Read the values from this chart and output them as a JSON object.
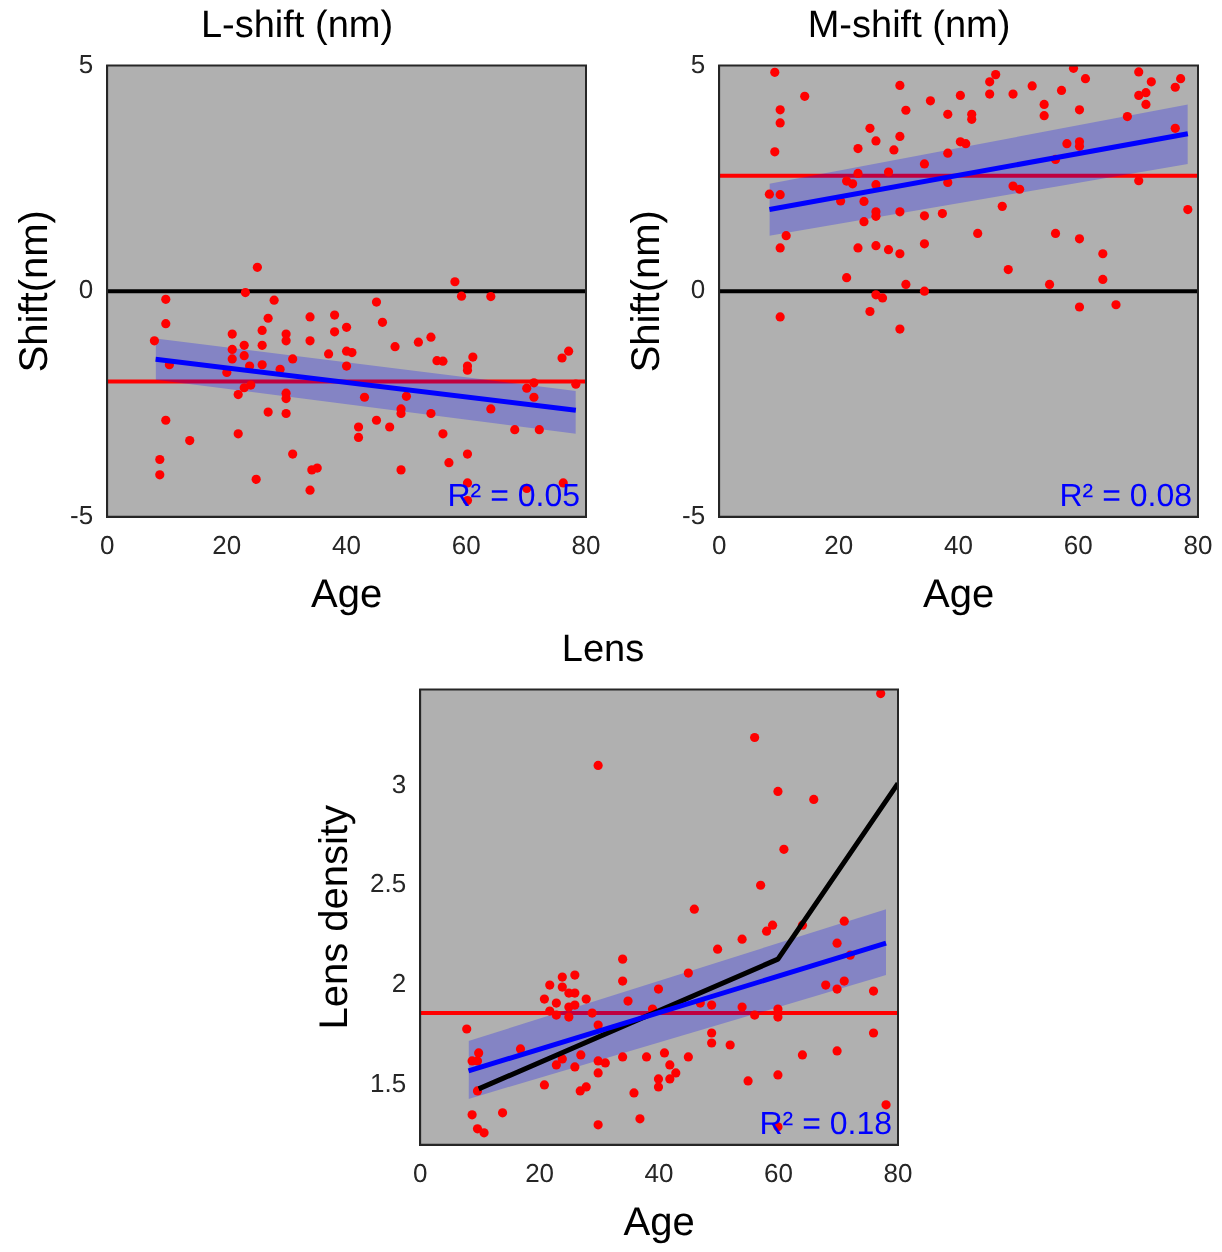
{
  "chart_data": [
    {
      "type": "scatter",
      "title": "L-shift (nm)",
      "xlabel": "Age",
      "ylabel": "Shift(nm)",
      "xlim": [
        0,
        80
      ],
      "xticks": [
        0,
        20,
        40,
        60,
        80
      ],
      "ylim": [
        -5,
        5
      ],
      "yticks": [
        -5,
        0,
        5
      ],
      "grid": false,
      "legend": false,
      "annotations": [
        "R² = 0.05"
      ],
      "ref_lines": [
        {
          "axis": "y",
          "value": 0,
          "color": "#000000"
        },
        {
          "axis": "y",
          "value": -2.0,
          "color": "#ff0000"
        }
      ],
      "series": [
        {
          "type": "scatter",
          "marker": "circle",
          "color": "#ff0000",
          "x": [
            25.1,
            9.8,
            9.8,
            7.9,
            9.8,
            8.8,
            8.8,
            13.8,
            10.4,
            23.1,
            27.9,
            26.9,
            20.9,
            25.9,
            25.9,
            22.9,
            20.9,
            20.9,
            22.9,
            20.0,
            25.9,
            23.8,
            24,
            22.9,
            21.9,
            29.9,
            29.9,
            31,
            28.9,
            29.9,
            29.9,
            29.9,
            26.9,
            21.9,
            24.9,
            31,
            33.9,
            33.9,
            34.2,
            33.9,
            35.1,
            37,
            38,
            38,
            40,
            40,
            40,
            40.9,
            42,
            42,
            43,
            45,
            46,
            45,
            47.2,
            48.1,
            49.1,
            49.1,
            50,
            49.1,
            52,
            54.1,
            54.1,
            55.1,
            56.1,
            56.1,
            57.1,
            58.1,
            59.2,
            60.2,
            60.2,
            61.1,
            60.2,
            60.2,
            60.2,
            64.1,
            64.1,
            68.1,
            70.1,
            71.3,
            71.3,
            72.2,
            70.1,
            76,
            77.1,
            78.3,
            76.2
          ],
          "values": [
            0.53,
            -0.18,
            -0.72,
            -1.1,
            -2.86,
            -3.73,
            -4.07,
            -3.31,
            -1.63,
            -0.03,
            -0.2,
            -0.6,
            -0.95,
            -0.87,
            -1.2,
            -1.2,
            -1.29,
            -1.5,
            -1.43,
            -1.8,
            -1.63,
            -1.66,
            -2.08,
            -2.14,
            -2.29,
            -0.95,
            -1.1,
            -1.5,
            -1.73,
            -2.26,
            -2.38,
            -2.71,
            -2.68,
            -3.16,
            -4.17,
            -3.61,
            -0.57,
            -1.1,
            -3.96,
            -4.41,
            -3.92,
            -1.39,
            -0.53,
            -0.9,
            -0.8,
            -1.33,
            -1.66,
            -1.36,
            -3.01,
            -3.24,
            -2.35,
            -0.24,
            -0.69,
            -2.86,
            -3.01,
            -1.23,
            -2.61,
            -2.71,
            -2.33,
            -3.96,
            -1.13,
            -1.02,
            -2.71,
            -1.54,
            -1.55,
            -3.16,
            -3.8,
            0.21,
            -0.11,
            -1.66,
            -1.75,
            -1.46,
            -3.61,
            -4.25,
            -4.64,
            -0.12,
            -2.61,
            -3.07,
            -2.15,
            -2.03,
            -2.35,
            -3.07,
            -4.37,
            -1.48,
            -1.33,
            -2.06,
            -4.25
          ]
        },
        {
          "type": "line",
          "color": "#0000ff",
          "x": [
            8.1,
            78.3
          ],
          "values": [
            -1.51,
            -2.64
          ],
          "lower": [
            -1.96,
            -3.16
          ],
          "upper": [
            -1.05,
            -2.21
          ],
          "marker": "none"
        }
      ]
    },
    {
      "type": "scatter",
      "title": "M-shift (nm)",
      "xlabel": "Age",
      "ylabel": "Shift(nm)",
      "xlim": [
        0,
        80
      ],
      "xticks": [
        0,
        20,
        40,
        60,
        80
      ],
      "ylim": [
        -5,
        5
      ],
      "yticks": [
        -5,
        0,
        5
      ],
      "grid": false,
      "legend": false,
      "annotations": [
        "R² = 0.08"
      ],
      "ref_lines": [
        {
          "axis": "y",
          "value": 0,
          "color": "#000000"
        },
        {
          "axis": "y",
          "value": 2.56,
          "color": "#ff0000"
        }
      ],
      "series": [
        {
          "type": "scatter",
          "marker": "circle",
          "color": "#ff0000",
          "x": [
            9.3,
            10.2,
            10.2,
            9.3,
            8.4,
            10.2,
            11.2,
            10.2,
            10.2,
            14.3,
            20.3,
            21.3,
            22.3,
            23.2,
            23.2,
            21.3,
            23.2,
            24.2,
            24.2,
            25.2,
            26.2,
            26.2,
            26.2,
            26.2,
            26.2,
            26.2,
            25.2,
            27.3,
            28.3,
            28.3,
            29.2,
            30.2,
            30.2,
            30.2,
            30.2,
            30.2,
            31.2,
            31.2,
            34.3,
            34.3,
            34.3,
            34.3,
            35.3,
            37.3,
            38.2,
            38.2,
            38.2,
            40.3,
            40.3,
            41.2,
            42.2,
            42.2,
            43.2,
            45.2,
            45.2,
            46.2,
            47.3,
            48.3,
            49.1,
            49.1,
            50.2,
            52.3,
            54.3,
            54.3,
            55.2,
            56.2,
            56.2,
            57.2,
            58.1,
            59.2,
            60.2,
            60.2,
            60.2,
            60.2,
            60.2,
            61.2,
            64.1,
            64.1,
            66.3,
            68.2,
            70.1,
            70.1,
            70.1,
            71.3,
            71.3,
            72.2,
            76.2,
            76.2,
            77.1,
            78.3
          ],
          "values": [
            4.85,
            4.02,
            3.73,
            3.09,
            2.15,
            2.14,
            1.23,
            0.96,
            -0.57,
            4.32,
            2.0,
            2.44,
            2.38,
            2.61,
            3.16,
            0.3,
            0.96,
            1.99,
            1.54,
            3.61,
            3.33,
            2.36,
            1.76,
            1.66,
            1.01,
            -0.08,
            -0.45,
            -0.15,
            2.64,
            0.92,
            3.13,
            4.56,
            3.43,
            1.76,
            0.83,
            -0.84,
            4.01,
            0.15,
            2.82,
            1.67,
            1.05,
            0,
            4.22,
            1.72,
            3.92,
            3.06,
            2.41,
            4.34,
            3.31,
            3.27,
            3.92,
            3.81,
            1.28,
            4.64,
            4.37,
            4.8,
            1.88,
            0.48,
            4.37,
            2.33,
            2.26,
            4.55,
            4.14,
            3.89,
            0.15,
            2.92,
            1.28,
            4.45,
            3.27,
            4.94,
            4.02,
            3.31,
            3.21,
            1.16,
            -0.35,
            4.71,
            0.83,
            0.26,
            -0.3,
            3.87,
            4.86,
            4.34,
            2.45,
            4.4,
            4.14,
            4.64,
            4.52,
            3.61,
            4.71,
            1.81
          ]
        },
        {
          "type": "line",
          "color": "#0000ff",
          "x": [
            8.4,
            78.3
          ],
          "values": [
            1.81,
            3.49
          ],
          "lower": [
            1.23,
            2.82
          ],
          "upper": [
            2.38,
            4.14
          ],
          "marker": "none"
        }
      ]
    },
    {
      "type": "scatter",
      "title": "Lens",
      "xlabel": "Age",
      "ylabel": "Lens density",
      "xlim": [
        0,
        80
      ],
      "xticks": [
        0,
        20,
        40,
        60,
        80
      ],
      "ylim": [
        1.2,
        3.48
      ],
      "yticks": [
        1.5,
        2,
        2.5,
        3
      ],
      "grid": false,
      "legend": false,
      "annotations": [
        "R² = 0.18"
      ],
      "ref_lines": [
        {
          "axis": "y",
          "value": 1.86,
          "color": "#ff0000"
        }
      ],
      "series": [
        {
          "type": "scatter",
          "marker": "circle",
          "color": "#ff0000",
          "x": [
            7.8,
            8.7,
            9.6,
            9.8,
            9.6,
            8.7,
            9.6,
            10.7,
            13.8,
            16.8,
            20.8,
            20.8,
            21.7,
            21.7,
            22.8,
            22.8,
            22.8,
            23.8,
            23.8,
            23.8,
            24.9,
            24.9,
            24.9,
            25.9,
            25.9,
            25.9,
            25.9,
            26.8,
            26.9,
            27.8,
            27.8,
            28.8,
            29.8,
            29.8,
            29.8,
            29.8,
            29.8,
            31,
            33.9,
            33.9,
            33.9,
            34.8,
            35.8,
            36.8,
            37.9,
            38.9,
            39.9,
            39.9,
            39.9,
            40.9,
            41.8,
            41.8,
            42.8,
            44.9,
            44.9,
            45.9,
            46.9,
            48.8,
            48.8,
            48.8,
            49.8,
            51.9,
            53.9,
            53.9,
            54.9,
            56.0,
            56.0,
            57,
            58,
            59,
            59.9,
            59.9,
            59.9,
            59.9,
            59.9,
            60.9,
            64,
            64,
            65.9,
            67.9,
            69.8,
            69.8,
            69.8,
            71,
            71,
            72,
            75.9,
            75.9,
            77.1,
            78
          ],
          "values": [
            1.78,
            1.62,
            1.62,
            1.66,
            1.47,
            1.35,
            1.28,
            1.26,
            1.36,
            1.68,
            1.93,
            1.5,
            2.0,
            1.87,
            1.91,
            1.85,
            1.6,
            2.04,
            1.99,
            1.63,
            1.96,
            1.89,
            1.84,
            2.05,
            1.96,
            1.9,
            1.59,
            1.47,
            1.65,
            1.93,
            1.49,
            1.86,
            3.1,
            1.8,
            1.62,
            1.56,
            1.3,
            1.61,
            2.13,
            2.02,
            1.64,
            1.92,
            1.46,
            1.33,
            1.64,
            1.88,
            1.98,
            1.53,
            1.49,
            1.66,
            1.6,
            1.53,
            1.56,
            2.06,
            1.64,
            2.38,
            1.91,
            1.9,
            1.76,
            1.71,
            2.18,
            1.7,
            1.89,
            2.23,
            1.52,
            3.24,
            1.85,
            2.5,
            2.27,
            2.3,
            2.97,
            1.88,
            1.84,
            1.55,
            1.29,
            2.68,
            2.3,
            1.65,
            2.93,
            2.0,
            2.21,
            1.98,
            1.67,
            2.32,
            2.02,
            2.15,
            1.97,
            1.76,
            3.46,
            1.4
          ]
        },
        {
          "type": "line",
          "color": "#0000ff",
          "x": [
            8.1,
            78
          ],
          "values": [
            1.57,
            2.21
          ],
          "lower": [
            1.43,
            2.05
          ],
          "upper": [
            1.72,
            2.38
          ],
          "marker": "none"
        },
        {
          "type": "line",
          "color": "#000000",
          "x": [
            9.8,
            59.9,
            80
          ],
          "values": [
            1.48,
            2.13,
            3.01
          ],
          "marker": "none"
        }
      ]
    }
  ]
}
